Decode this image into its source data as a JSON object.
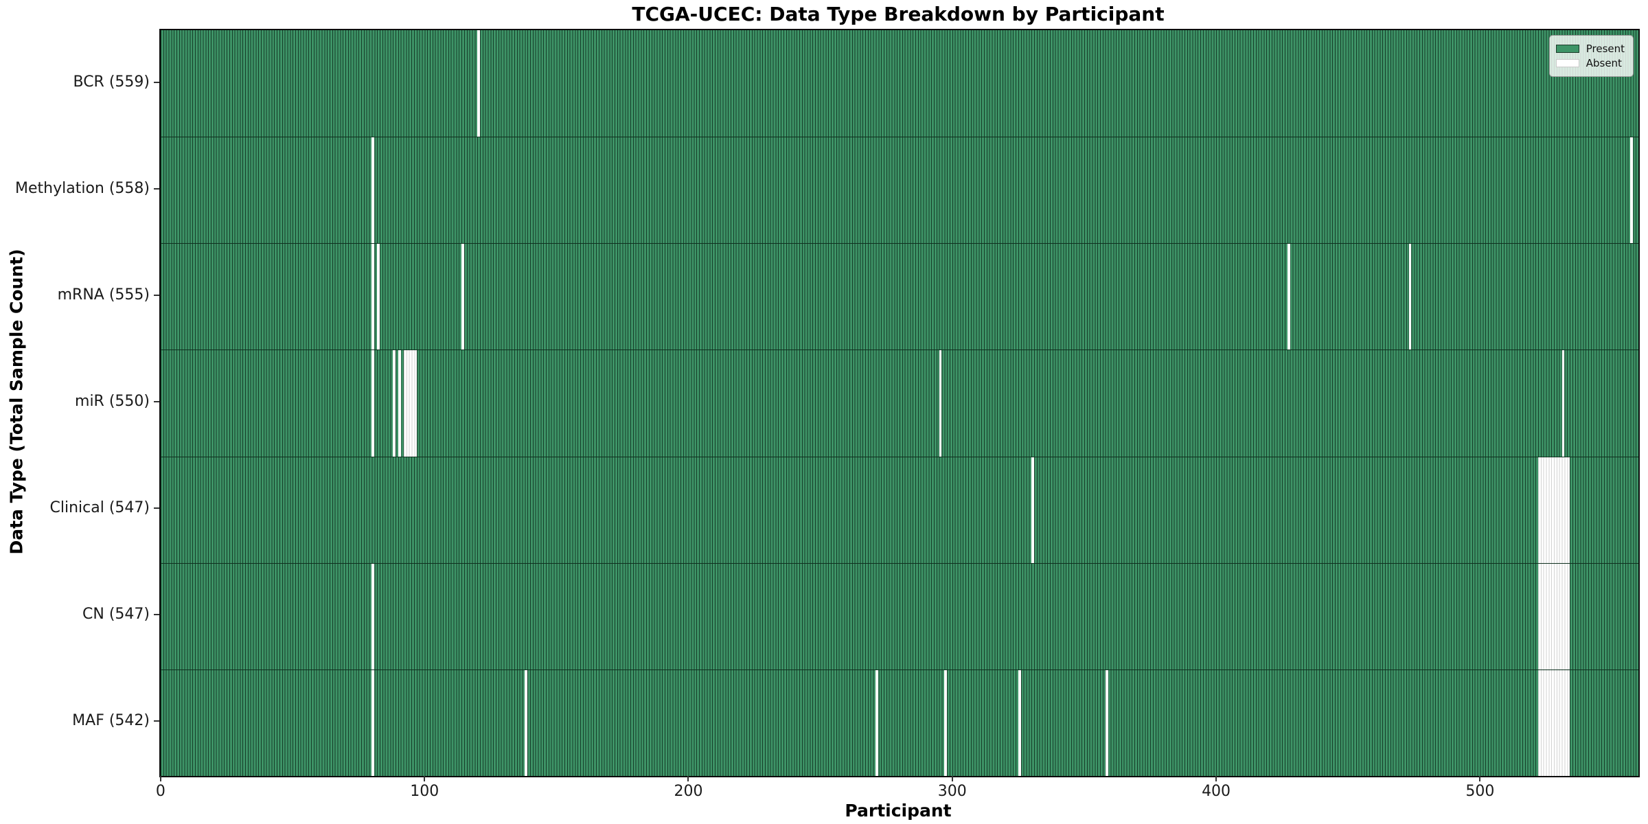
{
  "title": "TCGA-UCEC: Data Type Breakdown by Participant",
  "chart_data": {
    "type": "heatmap",
    "title": "TCGA-UCEC: Data Type Breakdown by Participant",
    "xlabel": "Participant",
    "ylabel": "Data Type (Total Sample Count)",
    "n_participants": 560,
    "xlim": [
      -0.5,
      559.5
    ],
    "x_ticks": [
      0,
      100,
      200,
      300,
      400,
      500
    ],
    "grid": false,
    "legend": {
      "position": "upper right",
      "entries": [
        {
          "label": "Present",
          "color": "#3e9467",
          "border": "#1c3a29"
        },
        {
          "label": "Absent",
          "color": "#ffffff",
          "border": "#c9c9c9"
        }
      ]
    },
    "colors": {
      "present_fill": "#3e9467",
      "cell_edge": "#153c28",
      "absent_fill": "#ffffff",
      "absent_edge": "#d2d2d2",
      "row_separator": "#0e2f1e",
      "frame": "#0c0c0c"
    },
    "rows": [
      {
        "label": "BCR (559)",
        "data_type": "BCR",
        "total": 559,
        "absent": [
          120
        ]
      },
      {
        "label": "Methylation (558)",
        "data_type": "Methylation",
        "total": 558,
        "absent": [
          80,
          557
        ]
      },
      {
        "label": "mRNA (555)",
        "data_type": "mRNA",
        "total": 555,
        "absent": [
          80,
          82,
          114,
          427,
          473
        ]
      },
      {
        "label": "miR (550)",
        "data_type": "miR",
        "total": 550,
        "absent": [
          80,
          88,
          90,
          92,
          93,
          94,
          95,
          96,
          295,
          531
        ]
      },
      {
        "label": "Clinical (547)",
        "data_type": "Clinical",
        "total": 547,
        "absent": [
          330,
          522,
          523,
          524,
          525,
          526,
          527,
          528,
          529,
          530,
          531,
          532,
          533
        ]
      },
      {
        "label": "CN (547)",
        "data_type": "CN",
        "total": 547,
        "absent": [
          80,
          522,
          523,
          524,
          525,
          526,
          527,
          528,
          529,
          530,
          531,
          532,
          533
        ]
      },
      {
        "label": "MAF (542)",
        "data_type": "MAF",
        "total": 542,
        "absent": [
          80,
          138,
          271,
          297,
          325,
          358,
          522,
          523,
          524,
          525,
          526,
          527,
          528,
          529,
          530,
          531,
          532,
          533
        ]
      }
    ]
  }
}
